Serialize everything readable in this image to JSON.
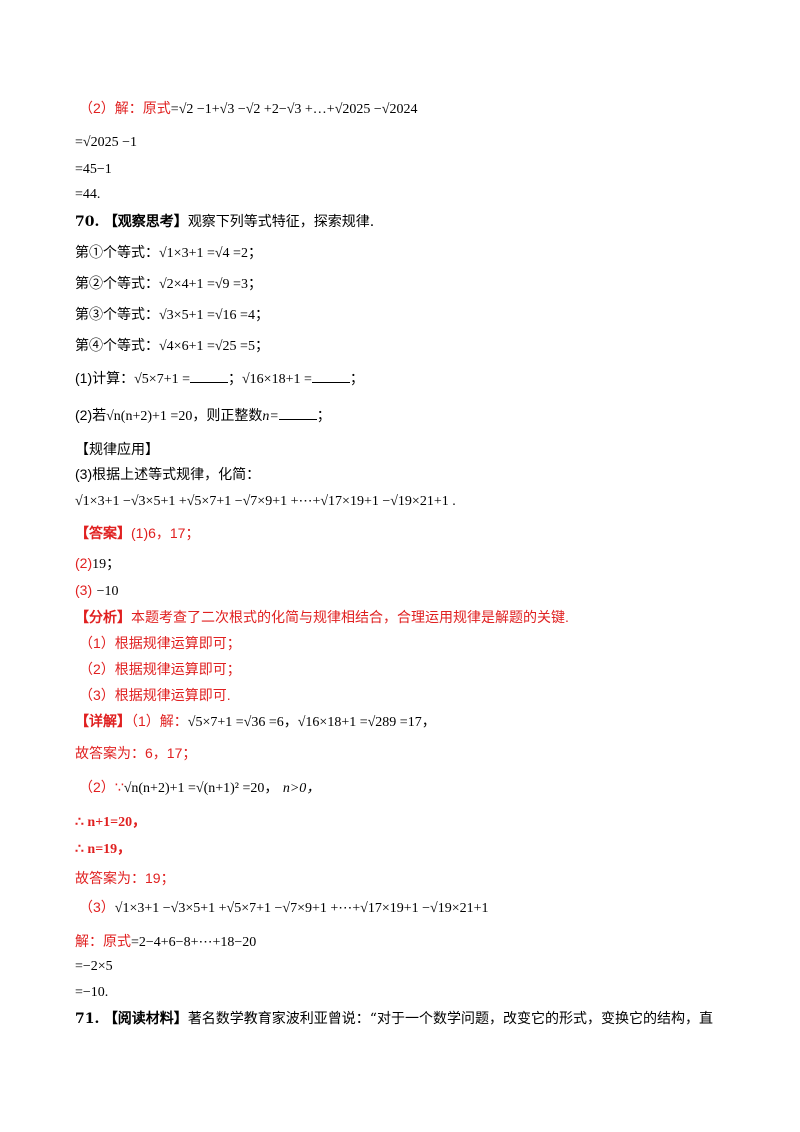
{
  "lines": {
    "l1_prefix": "（2）解：原式",
    "l1_math": "=√2 −1+√3 −√2 +2−√3 +…+√2025 −√2024",
    "l2": "=√2025 −1",
    "l3": "=45−1",
    "l4": "=44.",
    "q70_num": "70.",
    "q70_tag": "【观察思考】",
    "q70_text": "观察下列等式特征，探索规律.",
    "eq1_label": "第①个等式：",
    "eq1": "√1×3+1 =√4 =2；",
    "eq2_label": "第②个等式：",
    "eq2": "√2×4+1 =√9 =3；",
    "eq3_label": "第③个等式：",
    "eq3": "√3×5+1 =√16 =4；",
    "eq4_label": "第④个等式：",
    "eq4": "√4×6+1 =√25 =5；",
    "p1_label": "(1)计算：",
    "p1_a": "√5×7+1 =",
    "p1_sep": "；",
    "p1_b": "√16×18+1 =",
    "p1_end": "；",
    "p2_label": "(2)若",
    "p2_math": "√n(n+2)+1 =20",
    "p2_text": "，则正整数",
    "p2_n": "n=",
    "p2_end": "；",
    "rule_tag": "【规律应用】",
    "p3_text": "(3)根据上述等式规律，化简：",
    "p3_math": "√1×3+1 −√3×5+1 +√5×7+1 −√7×9+1 +⋯+√17×19+1 −√19×21+1 .",
    "ans_tag": "【答案】",
    "ans1": "(1)6，17；",
    "ans2_label": "(2)",
    "ans2": "19；",
    "ans3_label": "(3)",
    "ans3": "−10",
    "ana_tag": "【分析】",
    "ana_text": "本题考查了二次根式的化简与规律相结合，合理运用规律是解题的关键.",
    "ana1": "（1）根据规律运算即可；",
    "ana2": "（2）根据规律运算即可；",
    "ana3": "（3）根据规律运算即可.",
    "det_tag": "【详解】",
    "det1_prefix": "（1）解：",
    "det1_math": "√5×7+1 =√36 =6，√16×18+1 =√289 =17，",
    "det1_ans": "故答案为：6，17；",
    "det2_prefix": "（2）∵",
    "det2_math": "√n(n+2)+1 =√(n+1)² =20，",
    "det2_cond": "n>0，",
    "det2_l2": "∴ n+1=20，",
    "det2_l3": "∴ n=19，",
    "det2_ans": "故答案为：19；",
    "det3_prefix": "（3）",
    "det3_math": "√1×3+1 −√3×5+1 +√5×7+1 −√7×9+1 +⋯+√17×19+1 −√19×21+1",
    "det3_l1_prefix": "解：原式",
    "det3_l1": "=2−4+6−8+⋯+18−20",
    "det3_l2": "=−2×5",
    "det3_l3": "=−10.",
    "q71_num": "71.",
    "q71_tag": "【阅读材料】",
    "q71_text": "著名数学教育家波利亚曾说：“对于一个数学问题，改变它的形式，变换它的结构，直"
  }
}
